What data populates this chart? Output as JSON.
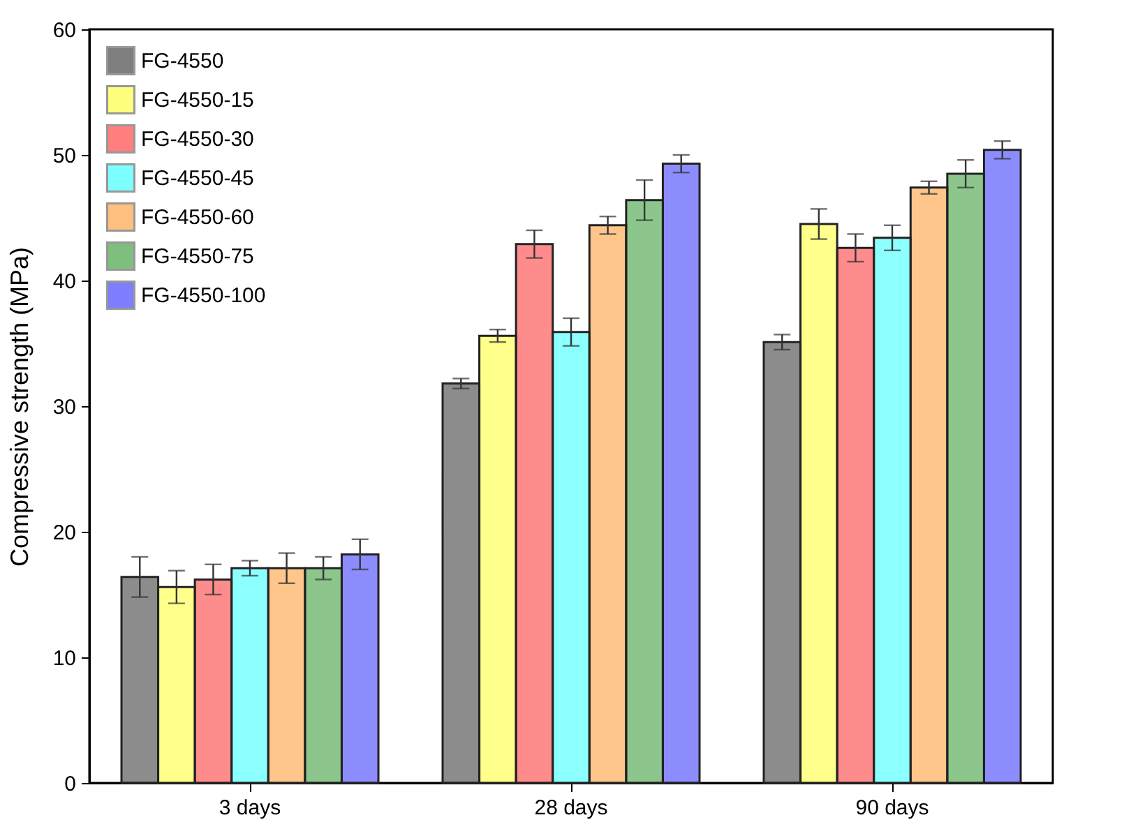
{
  "chart_data": {
    "type": "bar",
    "ylabel": "Compressive strength (MPa)",
    "categories": [
      "3 days",
      "28 days",
      "90 days"
    ],
    "ylim": [
      0,
      60
    ],
    "yticks": [
      0,
      10,
      20,
      30,
      40,
      50,
      60
    ],
    "grid": false,
    "legend": "top left",
    "series": [
      {
        "name": "FG-4550",
        "color": "#000000",
        "values": [
          16.4,
          31.8,
          35.1
        ],
        "errors": [
          1.6,
          0.4,
          0.6
        ]
      },
      {
        "name": "FG-4550-15",
        "color": "#ffff00",
        "values": [
          15.6,
          35.6,
          44.5
        ],
        "errors": [
          1.3,
          0.5,
          1.2
        ]
      },
      {
        "name": "FG-4550-30",
        "color": "#ff0000",
        "values": [
          16.2,
          42.9,
          42.6
        ],
        "errors": [
          1.2,
          1.1,
          1.1
        ]
      },
      {
        "name": "FG-4550-45",
        "color": "#00ffff",
        "values": [
          17.1,
          35.9,
          43.4
        ],
        "errors": [
          0.6,
          1.1,
          1.0
        ]
      },
      {
        "name": "FG-4550-60",
        "color": "#ff8000",
        "values": [
          17.1,
          44.4,
          47.4
        ],
        "errors": [
          1.2,
          0.7,
          0.5
        ]
      },
      {
        "name": "FG-4550-75",
        "color": "#008000",
        "values": [
          17.1,
          46.4,
          48.5
        ],
        "errors": [
          0.9,
          1.6,
          1.1
        ]
      },
      {
        "name": "FG-4550-100",
        "color": "#0000ff",
        "values": [
          18.2,
          49.3,
          50.4
        ],
        "errors": [
          1.2,
          0.7,
          0.7
        ]
      }
    ]
  }
}
